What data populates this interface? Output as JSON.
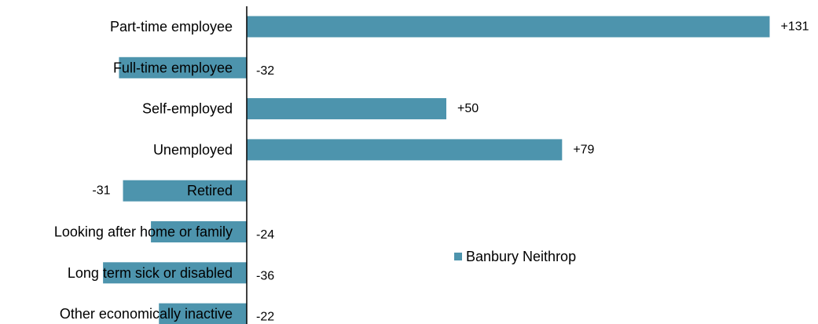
{
  "chart_data": {
    "type": "bar",
    "orientation": "horizontal",
    "categories": [
      "Part-time employee",
      "Full-time employee",
      "Self-employed",
      "Unemployed",
      "Retired",
      "Looking after home or family",
      "Long term sick or disabled",
      "Other economically inactive"
    ],
    "series": [
      {
        "name": "Banbury Neithrop",
        "values": [
          131,
          -32,
          50,
          79,
          -31,
          -24,
          -36,
          -22
        ],
        "value_labels": [
          "+131",
          "-32",
          "+50",
          "+79",
          "-31",
          "-24",
          "-36",
          "-22"
        ],
        "color": "#4d94ad"
      }
    ],
    "legend_position": "center-right",
    "grid": false
  }
}
